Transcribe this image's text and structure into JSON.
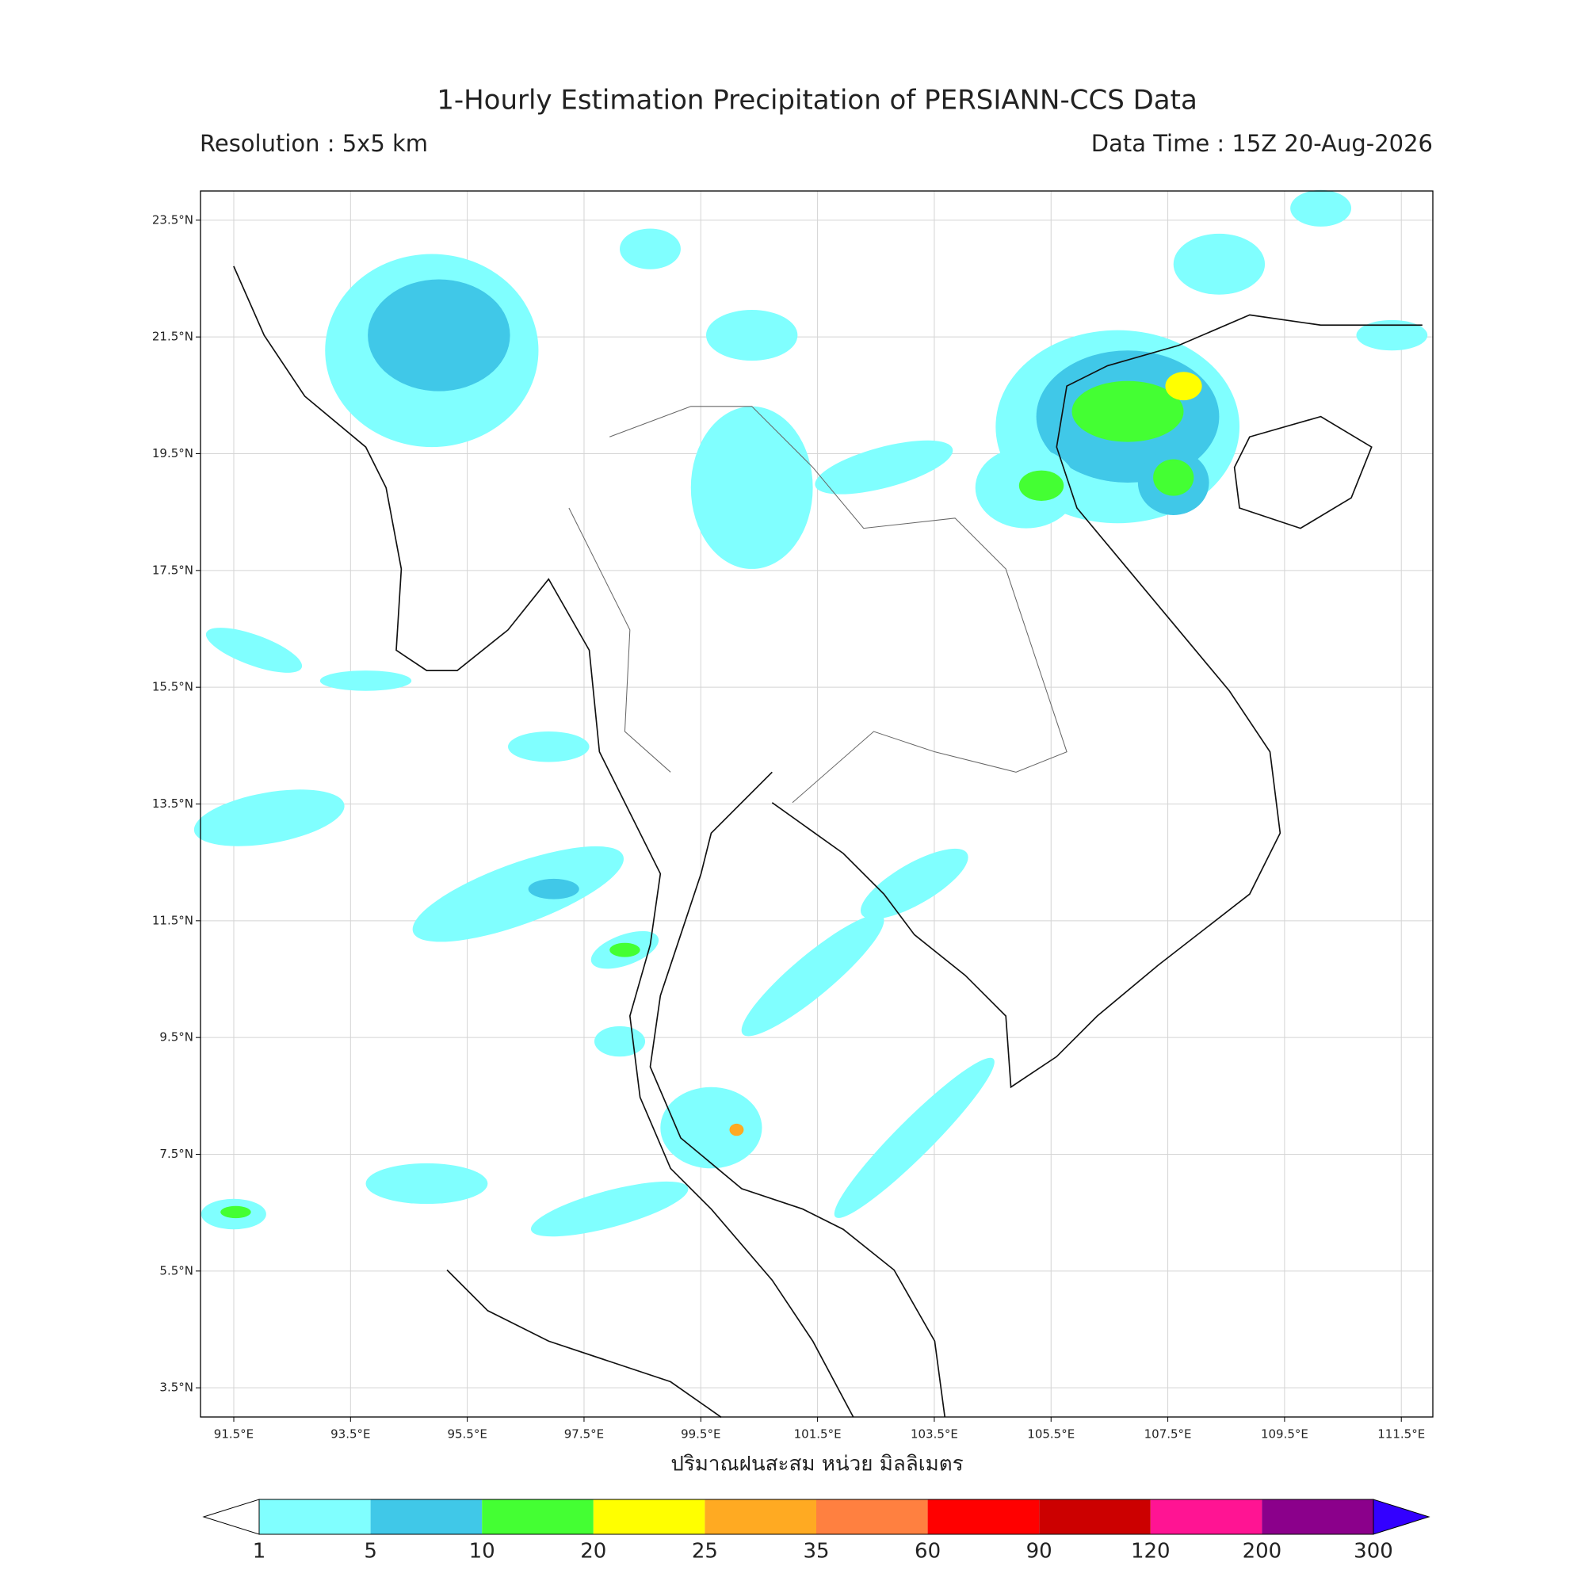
{
  "title": "1-Hourly Estimation Precipitation of PERSIANN-CCS Data",
  "resolution": "Resolution : 5x5 km",
  "data_time": "Data Time : 15Z 20-Aug-2026",
  "map": {
    "xlim": [
      90.93,
      112.04
    ],
    "ylim": [
      3,
      24
    ],
    "xticks": [
      {
        "value": 91.5,
        "label": "91.5°E"
      },
      {
        "value": 93.5,
        "label": "93.5°E"
      },
      {
        "value": 95.5,
        "label": "95.5°E"
      },
      {
        "value": 97.5,
        "label": "97.5°E"
      },
      {
        "value": 99.5,
        "label": "99.5°E"
      },
      {
        "value": 101.5,
        "label": "101.5°E"
      },
      {
        "value": 103.5,
        "label": "103.5°E"
      },
      {
        "value": 105.5,
        "label": "105.5°E"
      },
      {
        "value": 107.5,
        "label": "107.5°E"
      },
      {
        "value": 109.5,
        "label": "109.5°E"
      },
      {
        "value": 111.5,
        "label": "111.5°E"
      }
    ],
    "yticks": [
      {
        "value": 23.5,
        "label": "23.5°N"
      },
      {
        "value": 21.5,
        "label": "21.5°N"
      },
      {
        "value": 19.5,
        "label": "19.5°N"
      },
      {
        "value": 17.5,
        "label": "17.5°N"
      },
      {
        "value": 15.5,
        "label": "15.5°N"
      },
      {
        "value": 13.5,
        "label": "13.5°N"
      },
      {
        "value": 11.5,
        "label": "11.5°N"
      },
      {
        "value": 9.5,
        "label": "9.5°N"
      },
      {
        "value": 7.5,
        "label": "7.5°N"
      },
      {
        "value": 5.5,
        "label": "5.5°N"
      },
      {
        "value": 3.5,
        "label": "3.5°N"
      }
    ]
  },
  "xlabel": "ปริมาณฝนสะสม หน่วย มิลลิเมตร",
  "colorbar": {
    "levels": [
      1,
      5,
      10,
      20,
      25,
      35,
      60,
      90,
      120,
      200,
      300
    ],
    "colors": [
      "#80ffff",
      "#40c8e8",
      "#44ff33",
      "#ffff00",
      "#ffaa22",
      "#ff8040",
      "#ff0000",
      "#cc0000",
      "#ff1493",
      "#8b008b"
    ],
    "under_color": "#ffffff",
    "over_color": "#3300ff"
  }
}
